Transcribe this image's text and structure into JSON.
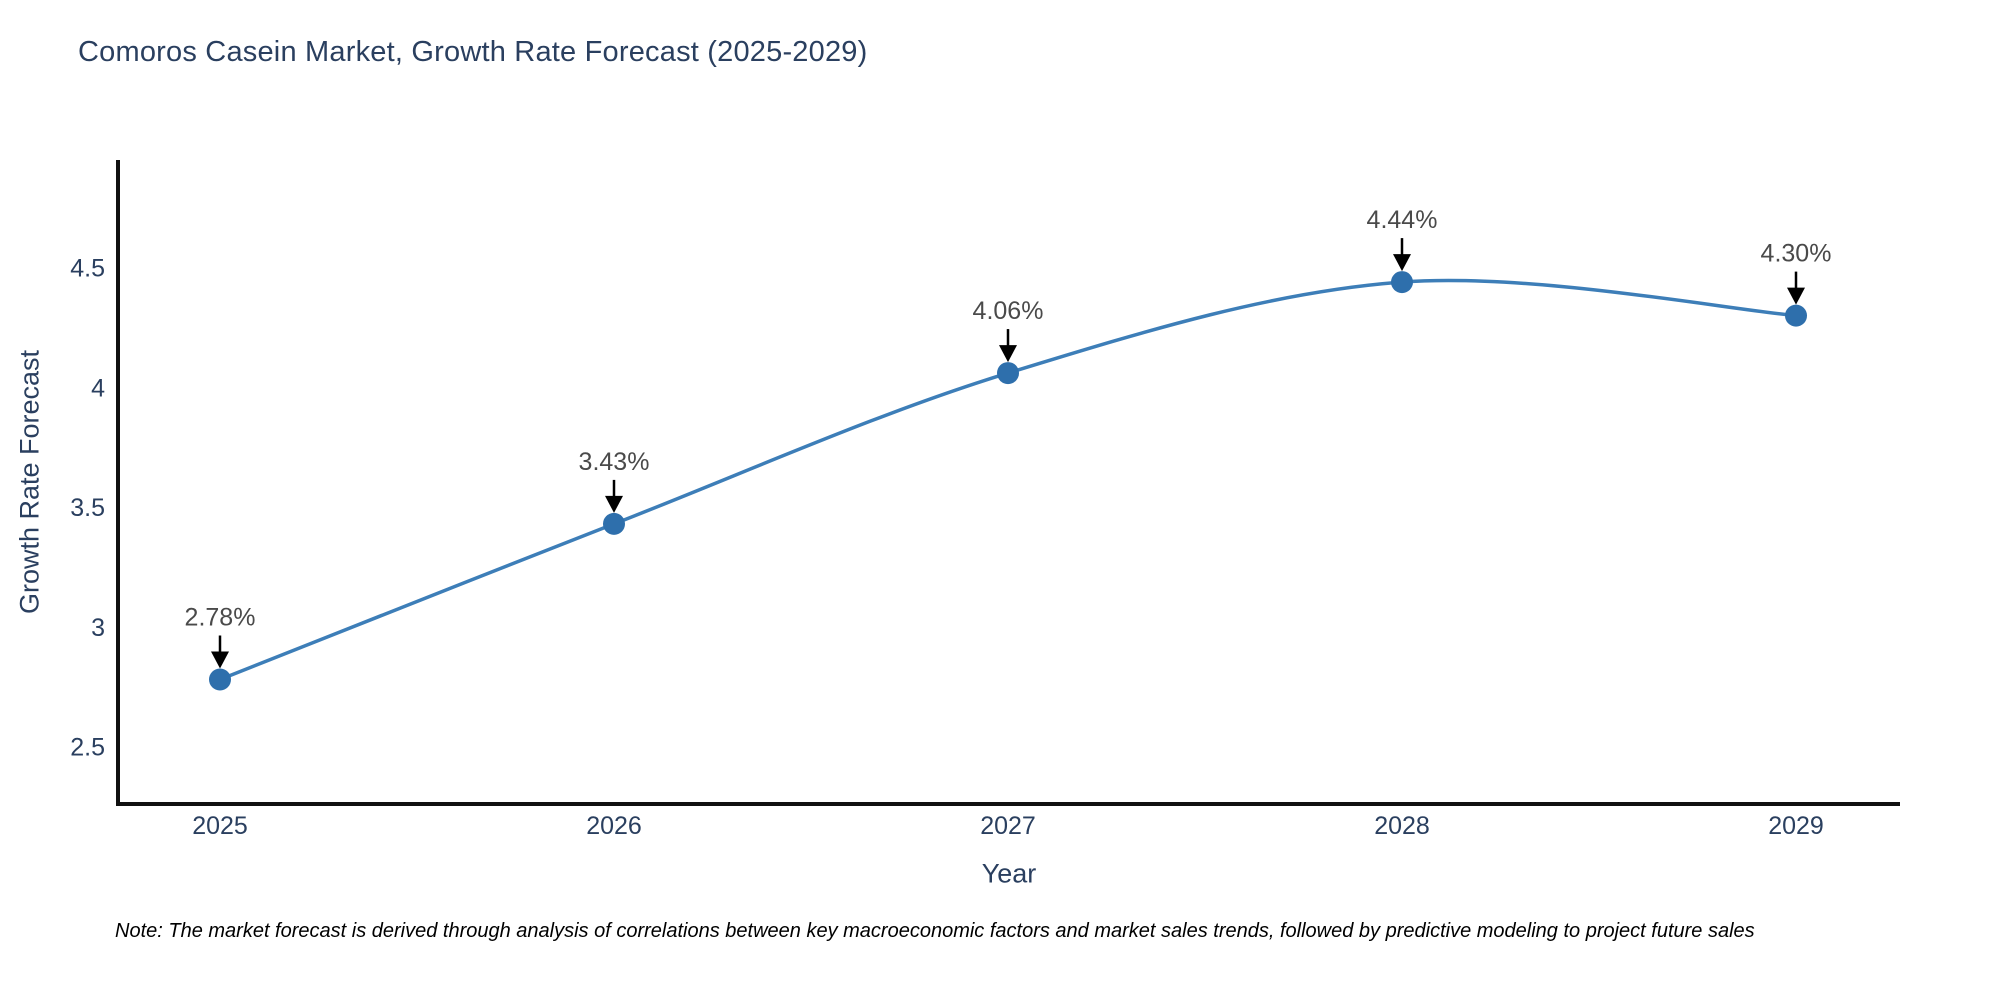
{
  "page": {
    "title": "Comoros Casein Market, Growth Rate Forecast (2025-2029)",
    "note": "Note: The market forecast is derived through analysis of correlations between key macroeconomic factors and market sales trends, followed by predictive modeling to project future sales"
  },
  "chart_data": {
    "type": "line",
    "title": "Comoros Casein Market, Growth Rate Forecast (2025-2029)",
    "xlabel": "Year",
    "ylabel": "Growth Rate Forecast",
    "categories": [
      "2025",
      "2026",
      "2027",
      "2028",
      "2029"
    ],
    "series": [
      {
        "name": "Growth Rate Forecast",
        "values": [
          2.78,
          3.43,
          4.06,
          4.44,
          4.3
        ],
        "point_labels": [
          "2.78%",
          "3.43%",
          "4.06%",
          "4.44%",
          "4.30%"
        ]
      }
    ],
    "yticks": [
      2.5,
      3,
      3.5,
      4,
      4.5
    ],
    "ylim": [
      2.26,
      4.95
    ],
    "grid": false,
    "legend": "none",
    "line_shape": "spline",
    "colors": {
      "line": "#3d7eb8",
      "marker": "#2e6fac",
      "axis": "#111111",
      "tick_text": "#2a3f5f",
      "annotation_text": "#4a4a4a",
      "arrow": "#000000"
    }
  }
}
